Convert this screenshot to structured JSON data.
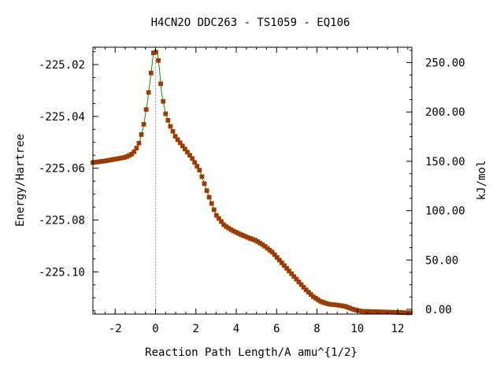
{
  "chart_data": {
    "type": "line",
    "title": "H4CN2O   DDC263 - TS1059 - EQ106",
    "xlabel": "Reaction Path Length/A amu^{1/2}",
    "ylabel": "Energy/Hartree",
    "y2label": "kJ/mol",
    "xlim": [
      -3.1,
      12.7
    ],
    "ylim": [
      -225.1163,
      -225.0133
    ],
    "y2lim": [
      -4.8,
      265.6
    ],
    "x_ticks": [
      -2,
      0,
      2,
      4,
      6,
      8,
      10,
      12
    ],
    "x_tick_labels": [
      "-2",
      "0",
      "2",
      "4",
      "6",
      "8",
      "10",
      "12"
    ],
    "y_ticks": [
      -225.02,
      -225.04,
      -225.06,
      -225.08,
      -225.1
    ],
    "y_tick_labels": [
      "-225.02",
      "-225.04",
      "-225.06",
      "-225.08",
      "-225.10"
    ],
    "y2_ticks": [
      0,
      50,
      100,
      150,
      200,
      250
    ],
    "y2_tick_labels": [
      "0.00",
      "50.00",
      "100.00",
      "150.00",
      "200.00",
      "250.00"
    ],
    "grid": false,
    "reference_line_x": 0.0,
    "colors": {
      "line": "#00a000",
      "marker_fill": "#cc2200",
      "marker_edge": "#606000",
      "reference_line": "#999999",
      "axis": "#000000"
    },
    "series": [
      {
        "x": [
          -3.1,
          -2.5,
          -2.0,
          -1.5,
          -1.2,
          -1.0,
          -0.8,
          -0.6,
          -0.4,
          -0.2,
          -0.1,
          0.0,
          0.1,
          0.2,
          0.3,
          0.5,
          0.7,
          1.0,
          1.4,
          1.8,
          2.2,
          2.6,
          3.0,
          3.4,
          3.8,
          4.2,
          4.6,
          5.0,
          5.4,
          5.8,
          6.2,
          6.6,
          7.0,
          7.4,
          7.8,
          8.2,
          8.6,
          9.0,
          9.4,
          9.8,
          10.2,
          10.6,
          11.0,
          11.4,
          11.8,
          12.2,
          12.5,
          12.7
        ],
        "y": [
          -225.0578,
          -225.0572,
          -225.0565,
          -225.0558,
          -225.0547,
          -225.0532,
          -225.05,
          -225.044,
          -225.0345,
          -225.022,
          -225.0155,
          -225.015,
          -225.016,
          -225.022,
          -225.031,
          -225.039,
          -225.0432,
          -225.048,
          -225.052,
          -225.056,
          -225.061,
          -225.07,
          -225.078,
          -225.082,
          -225.084,
          -225.0855,
          -225.0868,
          -225.088,
          -225.09,
          -225.0925,
          -225.096,
          -225.0995,
          -225.103,
          -225.1065,
          -225.1095,
          -225.1115,
          -225.1125,
          -225.1128,
          -225.1133,
          -225.1145,
          -225.1152,
          -225.1153,
          -225.1154,
          -225.1155,
          -225.1156,
          -225.1157,
          -225.1158,
          -225.1158
        ]
      }
    ]
  }
}
